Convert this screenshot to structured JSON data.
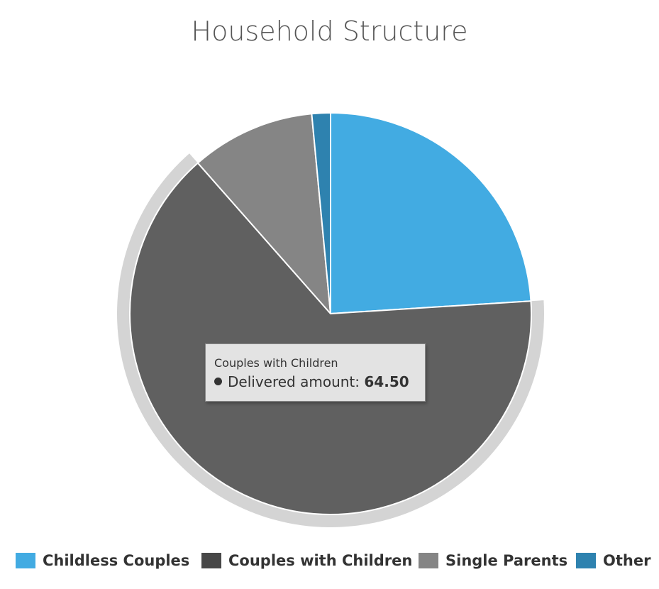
{
  "chart_data": {
    "type": "pie",
    "title": "Household Structure",
    "series_name": "Delivered amount",
    "slices": [
      {
        "name": "Childless Couples",
        "value": 24.0,
        "color": "#42ABE2"
      },
      {
        "name": "Couples with Children",
        "value": 64.5,
        "color": "#606060",
        "legend_color": "#474747"
      },
      {
        "name": "Single Parents",
        "value": 10.0,
        "color": "#858585"
      },
      {
        "name": "Other",
        "value": 1.5,
        "color": "#2E82AF"
      }
    ],
    "hovered_slice": "Couples with Children",
    "legend_position": "bottom"
  },
  "tooltip": {
    "header": "Couples with Children",
    "label": "Delivered amount",
    "value": "64.50"
  }
}
